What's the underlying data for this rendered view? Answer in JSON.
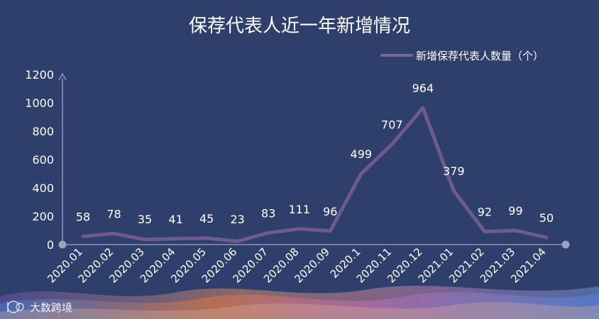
{
  "chart_data": {
    "type": "line",
    "title": "保荐代表人近一年新增情况",
    "categories": [
      "2020.01",
      "2020.02",
      "2020.03",
      "2020.04",
      "2020.05",
      "2020.06",
      "2020.07",
      "2020.08",
      "2020.09",
      "2020.1",
      "2020.11",
      "2020.12",
      "2021.01",
      "2021.02",
      "2021.03",
      "2021.04"
    ],
    "series": [
      {
        "name": "新增保荐代表人数量（个）",
        "values": [
          58,
          78,
          35,
          41,
          45,
          23,
          83,
          111,
          96,
          499,
          707,
          964,
          379,
          92,
          99,
          50
        ]
      }
    ],
    "yticks": [
      "0",
      "200",
      "400",
      "600",
      "800",
      "1000",
      "1200"
    ],
    "ylim": [
      0,
      1200
    ],
    "grid": false,
    "legend": "top-right",
    "data_labels": true,
    "colors": {
      "background": "#2f3f6b",
      "line": "#6e5a8e",
      "axis": "#8a96b8",
      "text": "#ffffff"
    }
  },
  "watermark": {
    "text": "大数跨境",
    "logo": "100-logo"
  }
}
